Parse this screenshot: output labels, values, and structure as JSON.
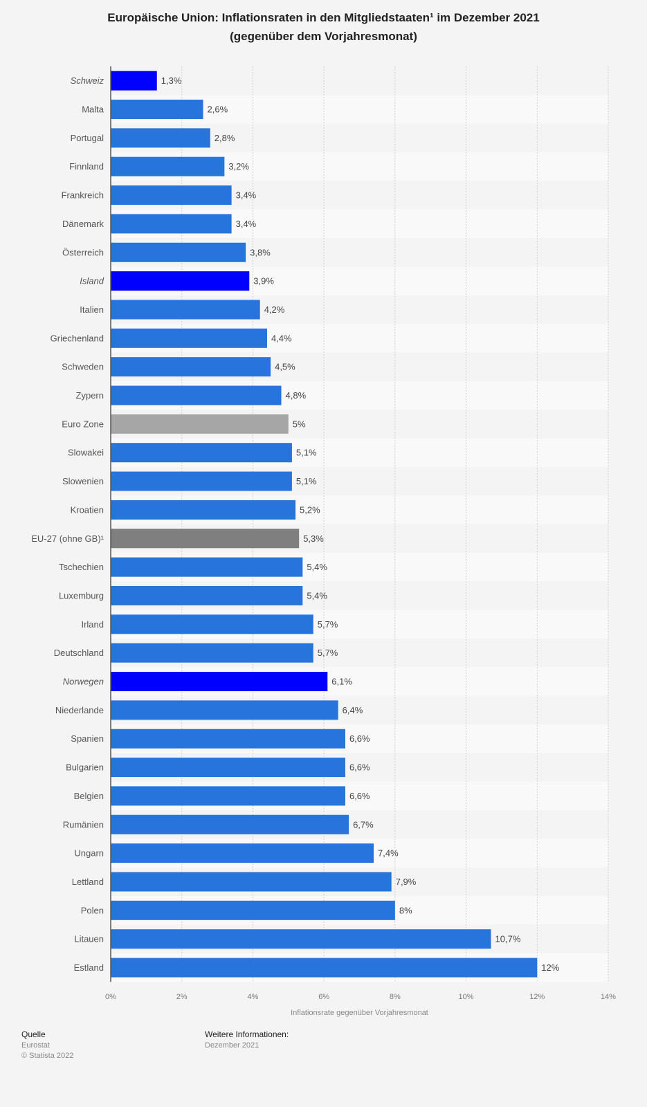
{
  "title_line1": "Europäische Union: Inflationsraten in den Mitgliedstaaten¹ im Dezember 2021",
  "title_line2": "(gegenüber dem Vorjahresmonat)",
  "footer": {
    "source_label": "Quelle",
    "source": "Eurostat",
    "copyright": "© Statista 2022",
    "info_label": "Weitere Informationen:",
    "info": "Dezember 2021"
  },
  "chart_data": {
    "type": "bar",
    "orientation": "horizontal",
    "xlabel": "Inflationsrate gegenüber Vorjahresmonat",
    "xlim": [
      0,
      14
    ],
    "xticks": [
      "0%",
      "2%",
      "4%",
      "6%",
      "8%",
      "10%",
      "12%",
      "14%"
    ],
    "grid": true,
    "categories": [
      "Schweiz",
      "Malta",
      "Portugal",
      "Finnland",
      "Frankreich",
      "Dänemark",
      "Österreich",
      "Island",
      "Italien",
      "Griechenland",
      "Schweden",
      "Zypern",
      "Euro Zone",
      "Slowakei",
      "Slowenien",
      "Kroatien",
      "EU-27 (ohne GB)¹",
      "Tschechien",
      "Luxemburg",
      "Irland",
      "Deutschland",
      "Norwegen",
      "Niederlande",
      "Spanien",
      "Bulgarien",
      "Belgien",
      "Rumänien",
      "Ungarn",
      "Lettland",
      "Polen",
      "Litauen",
      "Estland"
    ],
    "values": [
      1.3,
      2.6,
      2.8,
      3.2,
      3.4,
      3.4,
      3.8,
      3.9,
      4.2,
      4.4,
      4.5,
      4.8,
      5,
      5.1,
      5.1,
      5.2,
      5.3,
      5.4,
      5.4,
      5.7,
      5.7,
      6.1,
      6.4,
      6.6,
      6.6,
      6.6,
      6.7,
      7.4,
      7.9,
      8,
      10.7,
      12
    ],
    "labels": [
      "1,3%",
      "2,6%",
      "2,8%",
      "3,2%",
      "3,4%",
      "3,4%",
      "3,8%",
      "3,9%",
      "4,2%",
      "4,4%",
      "4,5%",
      "4,8%",
      "5%",
      "5,1%",
      "5,1%",
      "5,2%",
      "5,3%",
      "5,4%",
      "5,4%",
      "5,7%",
      "5,7%",
      "6,1%",
      "6,4%",
      "6,6%",
      "6,6%",
      "6,6%",
      "6,7%",
      "7,4%",
      "7,9%",
      "8%",
      "10,7%",
      "12%"
    ],
    "colors": {
      "default": "#2775dc",
      "non_eu": "#0000ff",
      "euro_zone": "#a6a6a6",
      "eu27": "#7f7f7f"
    },
    "non_eu": [
      "Schweiz",
      "Island",
      "Norwegen"
    ]
  }
}
